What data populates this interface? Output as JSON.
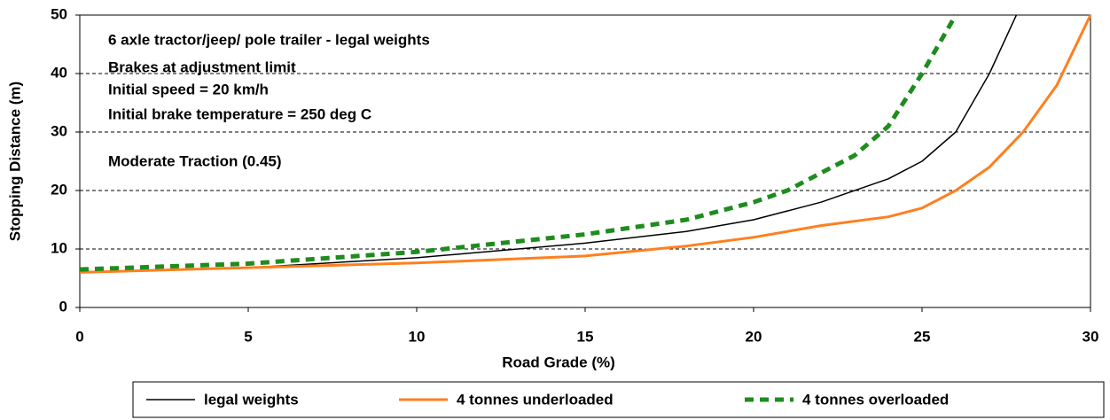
{
  "chart_data": {
    "type": "line",
    "x_label": "Road Grade (%)",
    "y_label": "Stopping Distance (m)",
    "annotations": [
      "6 axle tractor/jeep/ pole trailer - legal weights",
      "Brakes at adjustment limit",
      "Initial speed = 20 km/h",
      "Initial brake temperature = 250 deg C",
      "Moderate Traction  (0.45)"
    ],
    "xlim": [
      0,
      30
    ],
    "xticks": [
      0,
      5,
      10,
      15,
      20,
      25,
      30
    ],
    "ylim": [
      0,
      50
    ],
    "yticks": [
      0,
      10,
      20,
      30,
      40,
      50
    ],
    "grid": true,
    "series": [
      {
        "name": "legal weights",
        "color": "#000000",
        "x": [
          0,
          5,
          10,
          15,
          18,
          20,
          22,
          24,
          25,
          26,
          27,
          27.8
        ],
        "values": [
          6,
          6.8,
          8.5,
          11,
          13,
          15,
          18,
          22,
          25,
          30,
          40,
          50
        ]
      },
      {
        "name": "4 tonnes underloaded",
        "color": "#ff7f1e",
        "x": [
          0,
          5,
          10,
          15,
          18,
          20,
          22,
          24,
          25,
          26,
          27,
          28,
          29,
          30
        ],
        "values": [
          6,
          6.8,
          7.6,
          8.8,
          10.5,
          12,
          14,
          15.5,
          17,
          20,
          24,
          30,
          38,
          50
        ]
      },
      {
        "name": "4 tonnes overloaded",
        "color": "#1e8c1e",
        "x": [
          0,
          5,
          10,
          15,
          18,
          20,
          21,
          22,
          23,
          24,
          25,
          25.5,
          26
        ],
        "values": [
          6.5,
          7.5,
          9.5,
          12.5,
          15,
          18,
          20,
          23,
          26,
          31,
          40,
          45,
          50
        ]
      }
    ]
  }
}
